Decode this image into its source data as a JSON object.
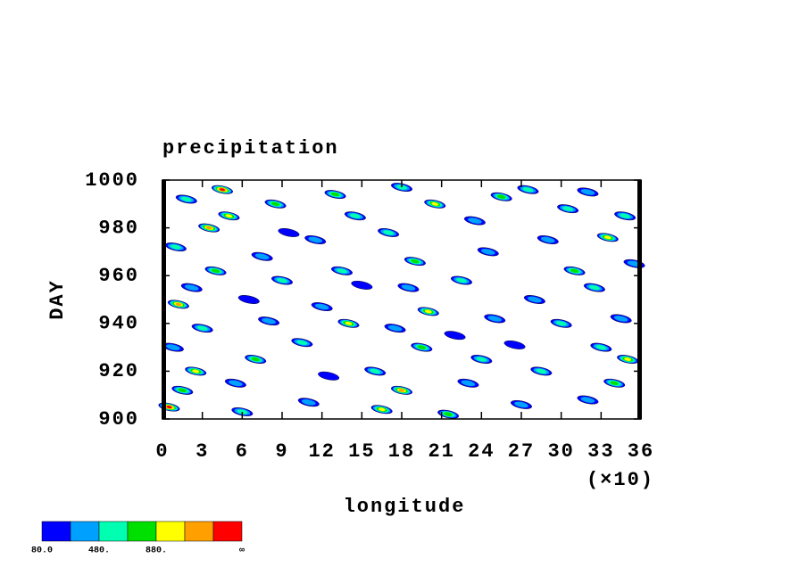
{
  "chart_data": {
    "type": "contour",
    "title": "precipitation",
    "xlabel": "longitude",
    "ylabel": "DAY",
    "x_multiplier": "(×10)",
    "xlim": [
      0,
      360
    ],
    "ylim": [
      900,
      1000
    ],
    "xticks": [
      {
        "value": 0,
        "label": "0"
      },
      {
        "value": 30,
        "label": "3"
      },
      {
        "value": 60,
        "label": "6"
      },
      {
        "value": 90,
        "label": "9"
      },
      {
        "value": 120,
        "label": "12"
      },
      {
        "value": 150,
        "label": "15"
      },
      {
        "value": 180,
        "label": "18"
      },
      {
        "value": 210,
        "label": "21"
      },
      {
        "value": 240,
        "label": "24"
      },
      {
        "value": 270,
        "label": "27"
      },
      {
        "value": 300,
        "label": "30"
      },
      {
        "value": 330,
        "label": "33"
      },
      {
        "value": 360,
        "label": "36"
      }
    ],
    "yticks": [
      900,
      920,
      940,
      960,
      980,
      1000
    ],
    "colorbar": {
      "levels": [
        80,
        280,
        480,
        680,
        880,
        1080,
        1280
      ],
      "colors": [
        "#0000ff",
        "#00a0ff",
        "#00ffb0",
        "#00e000",
        "#ffff00",
        "#ffa000",
        "#ff0000"
      ],
      "ticks": [
        {
          "value": 80,
          "label": "80.0"
        },
        {
          "value": 480,
          "label": "480."
        },
        {
          "value": 880,
          "label": "880."
        }
      ],
      "end_label": "∞"
    },
    "points": [
      [
        5,
        905,
        1300
      ],
      [
        15,
        912,
        700
      ],
      [
        25,
        920,
        900
      ],
      [
        8,
        930,
        400
      ],
      [
        30,
        938,
        500
      ],
      [
        12,
        948,
        1100
      ],
      [
        22,
        955,
        300
      ],
      [
        40,
        962,
        800
      ],
      [
        10,
        972,
        600
      ],
      [
        35,
        980,
        1200
      ],
      [
        50,
        985,
        900
      ],
      [
        18,
        992,
        500
      ],
      [
        45,
        996,
        1300
      ],
      [
        60,
        903,
        500
      ],
      [
        55,
        915,
        300
      ],
      [
        70,
        925,
        700
      ],
      [
        80,
        941,
        400
      ],
      [
        65,
        950,
        200
      ],
      [
        90,
        958,
        500
      ],
      [
        75,
        968,
        300
      ],
      [
        95,
        978,
        200
      ],
      [
        85,
        990,
        700
      ],
      [
        110,
        907,
        300
      ],
      [
        125,
        918,
        200
      ],
      [
        105,
        932,
        500
      ],
      [
        140,
        940,
        900
      ],
      [
        120,
        947,
        300
      ],
      [
        150,
        956,
        200
      ],
      [
        135,
        962,
        600
      ],
      [
        115,
        975,
        300
      ],
      [
        145,
        985,
        500
      ],
      [
        130,
        994,
        700
      ],
      [
        165,
        904,
        900
      ],
      [
        180,
        912,
        1200
      ],
      [
        160,
        920,
        500
      ],
      [
        195,
        930,
        700
      ],
      [
        175,
        938,
        400
      ],
      [
        200,
        945,
        900
      ],
      [
        185,
        955,
        300
      ],
      [
        190,
        966,
        800
      ],
      [
        170,
        978,
        500
      ],
      [
        205,
        990,
        1000
      ],
      [
        180,
        997,
        600
      ],
      [
        215,
        902,
        800
      ],
      [
        230,
        915,
        300
      ],
      [
        240,
        925,
        500
      ],
      [
        220,
        935,
        200
      ],
      [
        250,
        942,
        400
      ],
      [
        225,
        958,
        600
      ],
      [
        245,
        970,
        300
      ],
      [
        235,
        983,
        400
      ],
      [
        255,
        993,
        700
      ],
      [
        270,
        906,
        300
      ],
      [
        285,
        920,
        600
      ],
      [
        265,
        931,
        200
      ],
      [
        300,
        940,
        500
      ],
      [
        280,
        950,
        300
      ],
      [
        310,
        962,
        700
      ],
      [
        290,
        975,
        400
      ],
      [
        305,
        988,
        500
      ],
      [
        275,
        996,
        600
      ],
      [
        320,
        908,
        400
      ],
      [
        340,
        915,
        800
      ],
      [
        350,
        925,
        1000
      ],
      [
        330,
        930,
        600
      ],
      [
        345,
        942,
        300
      ],
      [
        325,
        955,
        500
      ],
      [
        355,
        965,
        400
      ],
      [
        335,
        976,
        900
      ],
      [
        348,
        985,
        600
      ],
      [
        320,
        995,
        300
      ]
    ]
  }
}
